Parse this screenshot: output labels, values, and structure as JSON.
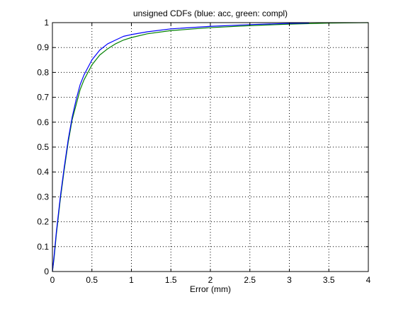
{
  "chart_data": {
    "type": "line",
    "title": "unsigned CDFs (blue: acc, green: compl)",
    "xlabel": "Error (mm)",
    "ylabel": "",
    "xlim": [
      0,
      4
    ],
    "ylim": [
      0,
      1
    ],
    "xticks": [
      0,
      0.5,
      1,
      1.5,
      2,
      2.5,
      3,
      3.5,
      4
    ],
    "yticks": [
      0,
      0.1,
      0.2,
      0.3,
      0.4,
      0.5,
      0.6,
      0.7,
      0.8,
      0.9,
      1
    ],
    "xtick_labels": [
      "0",
      "0.5",
      "1",
      "1.5",
      "2",
      "2.5",
      "3",
      "3.5",
      "4"
    ],
    "ytick_labels": [
      "0",
      "0.1",
      "0.2",
      "0.3",
      "0.4",
      "0.5",
      "0.6",
      "0.7",
      "0.8",
      "0.9",
      "1"
    ],
    "grid": true,
    "series": [
      {
        "color": "#0000ff",
        "x": [
          0,
          0.02,
          0.05,
          0.1,
          0.15,
          0.2,
          0.25,
          0.3,
          0.35,
          0.4,
          0.45,
          0.5,
          0.55,
          0.6,
          0.7,
          0.8,
          0.9,
          1.0,
          1.2,
          1.5,
          2.0,
          2.5,
          3.0,
          3.25
        ],
        "values": [
          0.0,
          0.06,
          0.16,
          0.3,
          0.42,
          0.53,
          0.62,
          0.69,
          0.75,
          0.79,
          0.82,
          0.85,
          0.87,
          0.89,
          0.915,
          0.93,
          0.945,
          0.952,
          0.963,
          0.975,
          0.985,
          0.992,
          0.997,
          0.998
        ]
      },
      {
        "color": "#008000",
        "x": [
          0,
          0.02,
          0.05,
          0.1,
          0.15,
          0.2,
          0.25,
          0.3,
          0.35,
          0.4,
          0.45,
          0.5,
          0.55,
          0.6,
          0.7,
          0.8,
          0.9,
          1.0,
          1.2,
          1.5,
          2.0,
          2.5,
          3.0,
          3.5,
          4.0
        ],
        "values": [
          0.0,
          0.05,
          0.15,
          0.29,
          0.41,
          0.52,
          0.61,
          0.67,
          0.73,
          0.77,
          0.8,
          0.83,
          0.85,
          0.87,
          0.895,
          0.915,
          0.93,
          0.94,
          0.955,
          0.968,
          0.98,
          0.988,
          0.994,
          0.998,
          1.0
        ]
      }
    ]
  }
}
